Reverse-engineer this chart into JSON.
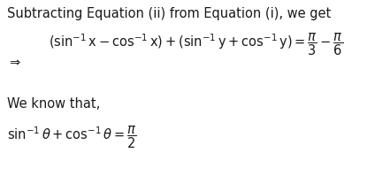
{
  "background_color": "#ffffff",
  "text_color": "#1a1a1a",
  "figsize": [
    4.24,
    2.16
  ],
  "dpi": 100,
  "line1": "Subtracting Equation (ii) from Equation (i), we get",
  "line3": "We know that,",
  "fs_text": 10.5,
  "fs_math": 10.5
}
